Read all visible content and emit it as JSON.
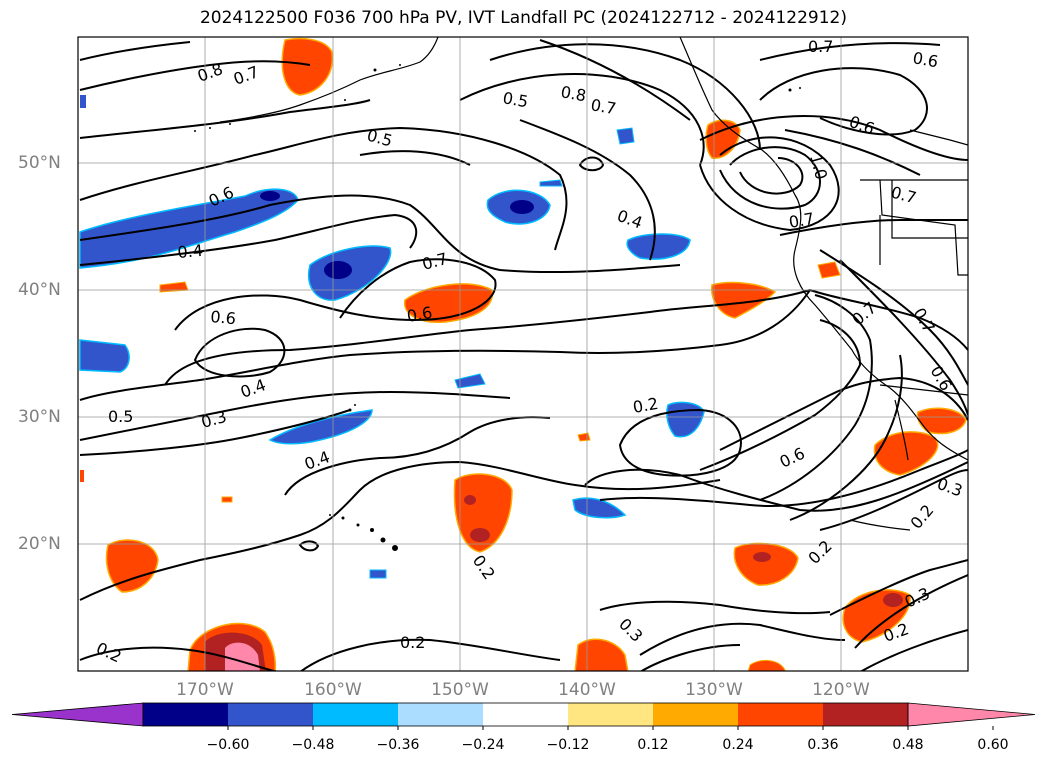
{
  "title": "2024122500 F036 700 hPa PV, IVT Landfall PC (2024122712 - 2024122912)",
  "map": {
    "lon_range": [
      -180,
      -110
    ],
    "lat_range": [
      10,
      60
    ],
    "lat_labels": [
      {
        "lat": 20,
        "text": "20°N"
      },
      {
        "lat": 30,
        "text": "30°N"
      },
      {
        "lat": 40,
        "text": "40°N"
      },
      {
        "lat": 50,
        "text": "50°N"
      }
    ],
    "lon_labels": [
      {
        "lon": -170,
        "text": "170°W"
      },
      {
        "lon": -160,
        "text": "160°W"
      },
      {
        "lon": -150,
        "text": "150°W"
      },
      {
        "lon": -140,
        "text": "140°W"
      },
      {
        "lon": -130,
        "text": "130°W"
      },
      {
        "lon": -120,
        "text": "120°W"
      }
    ],
    "gridlines": true,
    "contour_labels": [
      "0.8",
      "0.7",
      "0.5",
      "0.8",
      "0.7",
      "0.7",
      "0.6",
      "0.5",
      "0.6",
      "1.0",
      "0.7",
      "0.7",
      "0.6",
      "0.4",
      "0.4",
      "0.7",
      "0.6",
      "0.6",
      "0.4",
      "0.3",
      "0.5",
      "0.2",
      "0.6",
      "0.7",
      "0.7",
      "0.6",
      "0.4",
      "0.2",
      "0.3",
      "0.2",
      "0.2",
      "0.3",
      "0.2",
      "0.2",
      "0.3",
      "0.2"
    ]
  },
  "colorbar": {
    "colors": [
      "#9933cc",
      "#000088",
      "#3355cc",
      "#00bbff",
      "#aaddff",
      "#ffffff",
      "#ffe680",
      "#ffaa00",
      "#ff4500",
      "#b22222",
      "#ff88aa"
    ],
    "tick_labels": [
      "−0.60",
      "−0.48",
      "−0.36",
      "−0.24",
      "−0.12",
      "0.12",
      "0.24",
      "0.36",
      "0.48",
      "0.60"
    ]
  },
  "legend_colors": {
    "contour": "#000000",
    "grid": "#999999",
    "coast": "#000000"
  }
}
